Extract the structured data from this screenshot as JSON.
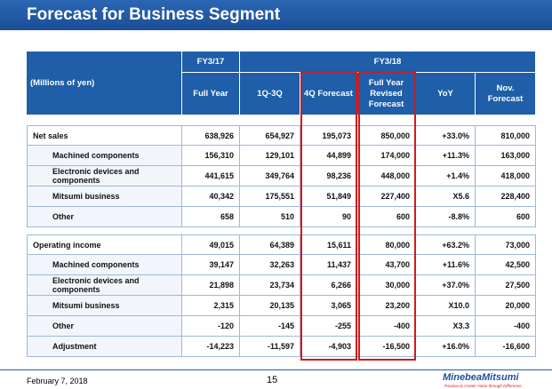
{
  "header": {
    "title": "Forecast for Business Segment"
  },
  "table": {
    "unit": "(Millions of yen)",
    "groups": [
      "FY3/17",
      "FY3/18"
    ],
    "columns": [
      "Full Year",
      "1Q-3Q",
      "4Q Forecast",
      "Full Year Revised Forecast",
      "YoY",
      "Nov. Forecast"
    ],
    "sections": [
      {
        "rows": [
          [
            "Net sales",
            "638,926",
            "654,927",
            "195,073",
            "850,000",
            "+33.0%",
            "810,000"
          ],
          [
            "Machined components",
            "156,310",
            "129,101",
            "44,899",
            "174,000",
            "+11.3%",
            "163,000"
          ],
          [
            "Electronic devices and components",
            "441,615",
            "349,764",
            "98,236",
            "448,000",
            "+1.4%",
            "418,000"
          ],
          [
            "Mitsumi business",
            "40,342",
            "175,551",
            "51,849",
            "227,400",
            "X5.6",
            "228,400"
          ],
          [
            "Other",
            "658",
            "510",
            "90",
            "600",
            "-8.8%",
            "600"
          ]
        ]
      },
      {
        "rows": [
          [
            "Operating income",
            "49,015",
            "64,389",
            "15,611",
            "80,000",
            "+63.2%",
            "73,000"
          ],
          [
            "Machined components",
            "39,147",
            "32,263",
            "11,437",
            "43,700",
            "+11.6%",
            "42,500"
          ],
          [
            "Electronic devices and components",
            "21,898",
            "23,734",
            "6,266",
            "30,000",
            "+37.0%",
            "27,500"
          ],
          [
            "Mitsumi business",
            "2,315",
            "20,135",
            "3,065",
            "23,200",
            "X10.0",
            "20,000"
          ],
          [
            "Other",
            "-120",
            "-145",
            "-255",
            "-400",
            "X3.3",
            "-400"
          ],
          [
            "Adjustment",
            "-14,223",
            "-11,597",
            "-4,903",
            "-16,500",
            "+16.0%",
            "-16,600"
          ]
        ]
      }
    ]
  },
  "footer": {
    "date": "February 7, 2018",
    "page": "15",
    "logo": "MinebeaMitsumi",
    "tagline": "Passion to Create Value through Difference"
  }
}
